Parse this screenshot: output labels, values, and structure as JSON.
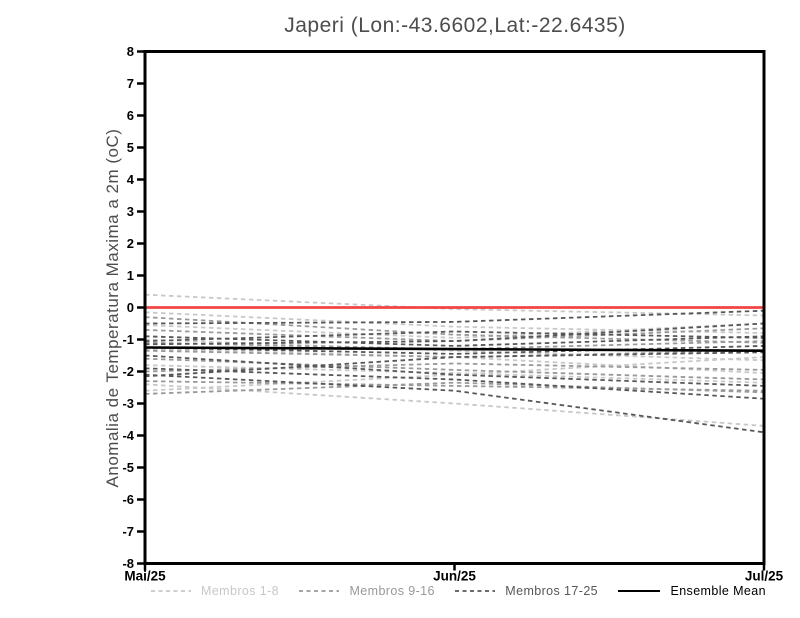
{
  "chart_data": {
    "type": "line",
    "title": "Japeri (Lon:-43.6602,Lat:-22.6435)",
    "ylabel": "Anomalia de Temperatura Maxima a 2m (oC)",
    "xlabel": "",
    "x_categories": [
      "Mai/25",
      "Jun/25",
      "Jul/25"
    ],
    "ylim": [
      -8,
      8
    ],
    "yticks": [
      8,
      7,
      6,
      5,
      4,
      3,
      2,
      1,
      0,
      -1,
      -2,
      -3,
      -4,
      -5,
      -6,
      -7,
      -8
    ],
    "grid": "off",
    "legend_position": "bottom",
    "zero_line": {
      "value": 0,
      "color": "#f24444"
    },
    "ensemble_mean": {
      "name": "Ensemble Mean",
      "color": "#000000",
      "values": [
        -1.25,
        -1.3,
        -1.35
      ]
    },
    "member_groups": [
      {
        "name": "Membros 1-8",
        "color": "#c8c8c8",
        "members": [
          [
            0.4,
            -0.05,
            -0.25
          ],
          [
            -0.15,
            -0.6,
            -0.8
          ],
          [
            -0.55,
            -0.95,
            -0.5
          ],
          [
            -1.0,
            -1.35,
            -1.65
          ],
          [
            -1.3,
            -1.55,
            -2.05
          ],
          [
            -1.8,
            -2.05,
            -2.35
          ],
          [
            -2.4,
            -3.0,
            -3.7
          ],
          [
            -2.6,
            -2.1,
            -1.55
          ]
        ]
      },
      {
        "name": "Membros 9-16",
        "color": "#999999",
        "members": [
          [
            -0.3,
            -0.85,
            -1.1
          ],
          [
            -0.7,
            -1.05,
            -0.65
          ],
          [
            -1.1,
            -1.3,
            -1.05
          ],
          [
            -1.35,
            -1.55,
            -1.35
          ],
          [
            -1.6,
            -1.95,
            -2.25
          ],
          [
            -2.0,
            -1.75,
            -1.95
          ],
          [
            -2.3,
            -2.45,
            -2.6
          ],
          [
            -2.7,
            -2.35,
            -2.65
          ]
        ]
      },
      {
        "name": "Membros 17-25",
        "color": "#575757",
        "members": [
          [
            -0.5,
            -0.45,
            -0.1
          ],
          [
            -0.9,
            -1.2,
            -0.9
          ],
          [
            -1.15,
            -1.05,
            -0.5
          ],
          [
            -1.25,
            -1.45,
            -1.2
          ],
          [
            -1.5,
            -2.1,
            -2.45
          ],
          [
            -1.9,
            -2.25,
            -2.85
          ],
          [
            -2.1,
            -2.6,
            -3.9
          ],
          [
            -2.15,
            -1.55,
            -1.4
          ],
          [
            -1.05,
            -0.75,
            -0.95
          ]
        ]
      }
    ]
  }
}
